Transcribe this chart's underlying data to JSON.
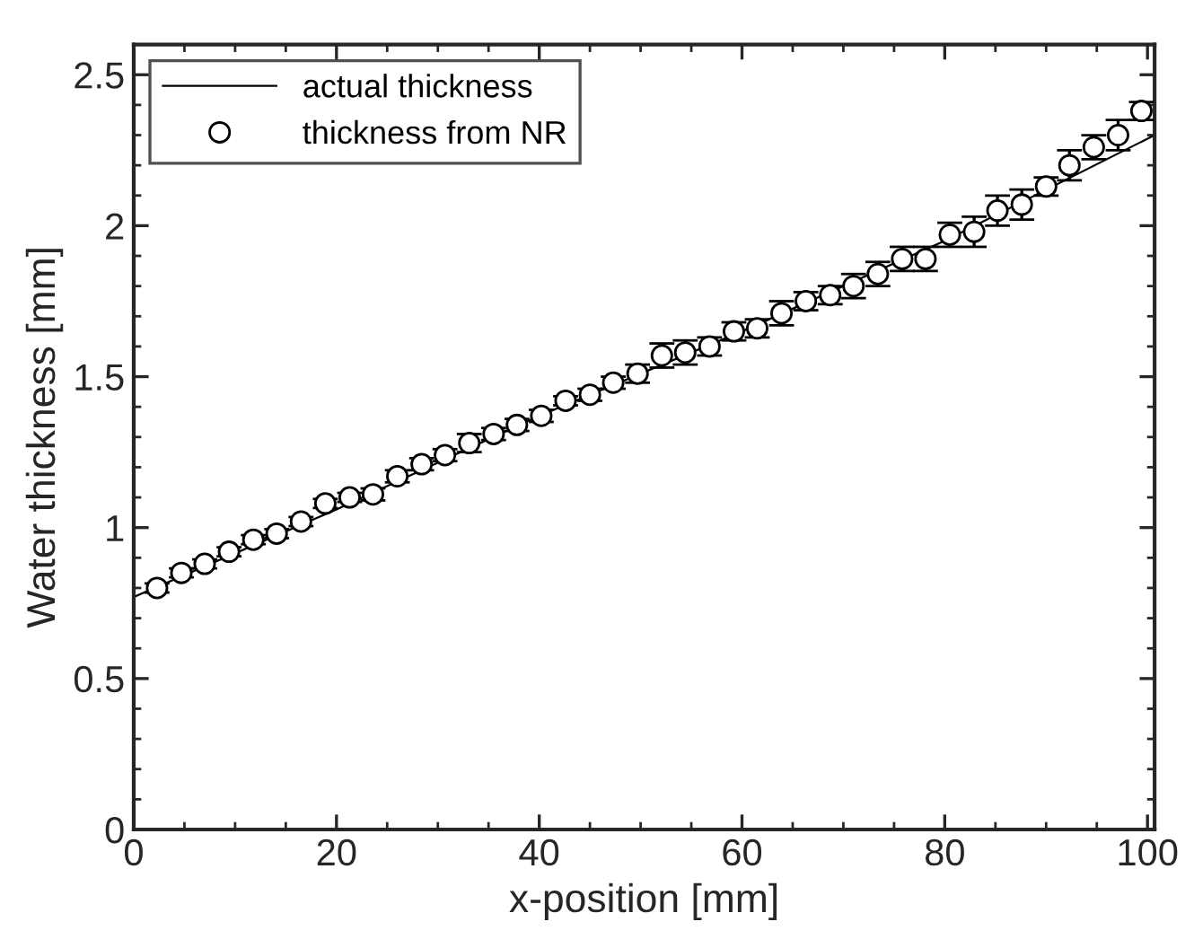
{
  "chart_data": {
    "type": "scatter",
    "xlabel": "x-position [mm]",
    "ylabel": "Water thickness [mm]",
    "xlim": [
      0,
      100.7
    ],
    "ylim": [
      0,
      2.6
    ],
    "xticks": [
      0,
      20,
      40,
      60,
      80,
      100
    ],
    "yticks": [
      0,
      0.5,
      1,
      1.5,
      2,
      2.5
    ],
    "grid": false,
    "legend": "top left",
    "series": [
      {
        "name": "actual thickness",
        "type": "line",
        "color": "#000000",
        "marker": "none",
        "line_style": "solid",
        "x": [
          0,
          20,
          40,
          60,
          80,
          100.7
        ],
        "values": [
          0.77,
          1.06,
          1.37,
          1.65,
          1.95,
          2.3
        ]
      },
      {
        "name": "thickness from NR",
        "color": "#000000",
        "marker": "circle",
        "x": [
          2.3,
          4.7,
          7.0,
          9.4,
          11.8,
          14.1,
          16.5,
          18.9,
          21.3,
          23.6,
          26.0,
          28.4,
          30.7,
          33.1,
          35.5,
          37.8,
          40.2,
          42.6,
          45.0,
          47.3,
          49.7,
          52.1,
          54.4,
          56.8,
          59.2,
          61.5,
          63.9,
          66.3,
          68.7,
          71.0,
          73.4,
          75.8,
          78.1,
          80.5,
          82.9,
          85.2,
          87.6,
          90.0,
          92.3,
          94.7,
          97.1,
          99.4
        ],
        "values": [
          0.8,
          0.85,
          0.88,
          0.92,
          0.96,
          0.98,
          1.02,
          1.08,
          1.1,
          1.11,
          1.17,
          1.21,
          1.24,
          1.28,
          1.31,
          1.34,
          1.37,
          1.42,
          1.44,
          1.48,
          1.51,
          1.57,
          1.58,
          1.6,
          1.65,
          1.66,
          1.71,
          1.75,
          1.77,
          1.8,
          1.84,
          1.89,
          1.89,
          1.97,
          1.98,
          2.05,
          2.07,
          2.13,
          2.2,
          2.26,
          2.3,
          2.38
        ],
        "errors": [
          0.015,
          0.015,
          0.015,
          0.015,
          0.015,
          0.015,
          0.015,
          0.015,
          0.015,
          0.02,
          0.02,
          0.02,
          0.02,
          0.03,
          0.02,
          0.02,
          0.02,
          0.015,
          0.02,
          0.02,
          0.03,
          0.04,
          0.04,
          0.03,
          0.03,
          0.03,
          0.04,
          0.03,
          0.03,
          0.04,
          0.04,
          0.04,
          0.04,
          0.04,
          0.05,
          0.05,
          0.05,
          0.03,
          0.05,
          0.04,
          0.05,
          0.03
        ]
      }
    ]
  }
}
